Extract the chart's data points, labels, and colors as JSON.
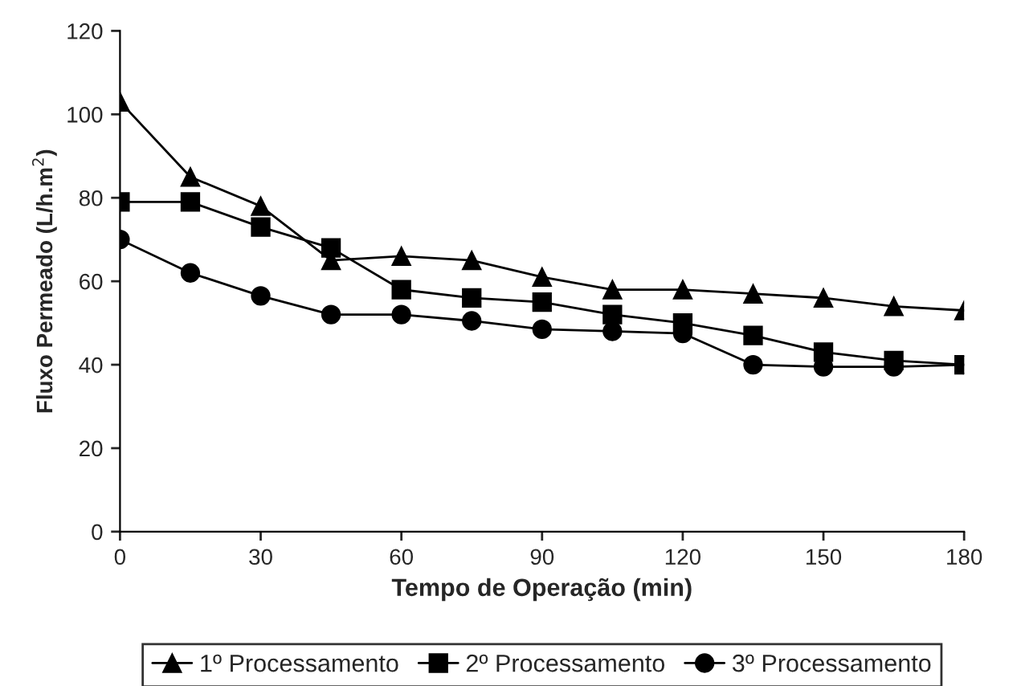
{
  "chart_data": {
    "type": "line",
    "xlabel": "Tempo de Operação (min)",
    "ylabel": "Fluxo Permeado (L/h.m$^{2}$)",
    "x": [
      0,
      15,
      30,
      45,
      60,
      75,
      90,
      105,
      120,
      135,
      150,
      165,
      180
    ],
    "series": [
      {
        "name": "1º Processamento",
        "color": "#000000",
        "marker": "triangle",
        "values": [
          103,
          85,
          78,
          65,
          66,
          65,
          61,
          58,
          58,
          57,
          56,
          54,
          53
        ]
      },
      {
        "name": "2º Processamento",
        "color": "#000000",
        "marker": "square",
        "values": [
          79,
          79,
          73,
          68,
          58,
          56,
          55,
          52,
          50,
          47,
          43,
          41,
          40
        ]
      },
      {
        "name": "3º Processamento",
        "color": "#000000",
        "marker": "circle",
        "values": [
          70,
          62,
          56.5,
          52,
          52,
          50.5,
          48.5,
          48,
          47.5,
          40,
          39.5,
          39.5,
          40
        ]
      }
    ],
    "xlim": [
      0,
      180
    ],
    "xticks": [
      0,
      30,
      60,
      90,
      120,
      150,
      180
    ],
    "ylim": [
      0,
      120
    ],
    "yticks": [
      0,
      20,
      40,
      60,
      80,
      100,
      120
    ],
    "grid": false,
    "legend": "bottom",
    "line_style": "solid"
  }
}
